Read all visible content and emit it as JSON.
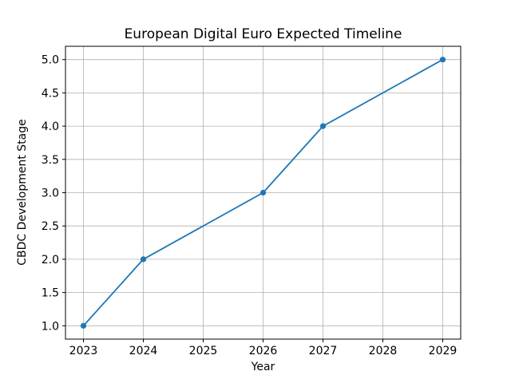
{
  "figure": {
    "background": "#ffffff"
  },
  "chart_data": {
    "type": "line",
    "title": "European Digital Euro Expected Timeline",
    "xlabel": "Year",
    "ylabel": "CBDC Development Stage",
    "series": [
      {
        "name": "CBDC Development Stage",
        "x": [
          2023,
          2024,
          2026,
          2027,
          2029
        ],
        "y": [
          1,
          2,
          3,
          4,
          5
        ]
      }
    ],
    "x_ticks": [
      2023,
      2024,
      2025,
      2026,
      2027,
      2028,
      2029
    ],
    "y_ticks": [
      1.0,
      1.5,
      2.0,
      2.5,
      3.0,
      3.5,
      4.0,
      4.5,
      5.0
    ],
    "xlim": [
      2022.7,
      2029.3
    ],
    "ylim": [
      0.8,
      5.2
    ],
    "grid": true,
    "legend": false,
    "line_color": "#1f77b4",
    "grid_color": "#b0b0b0",
    "axis_color": "#000000",
    "marker_style": "circle"
  }
}
